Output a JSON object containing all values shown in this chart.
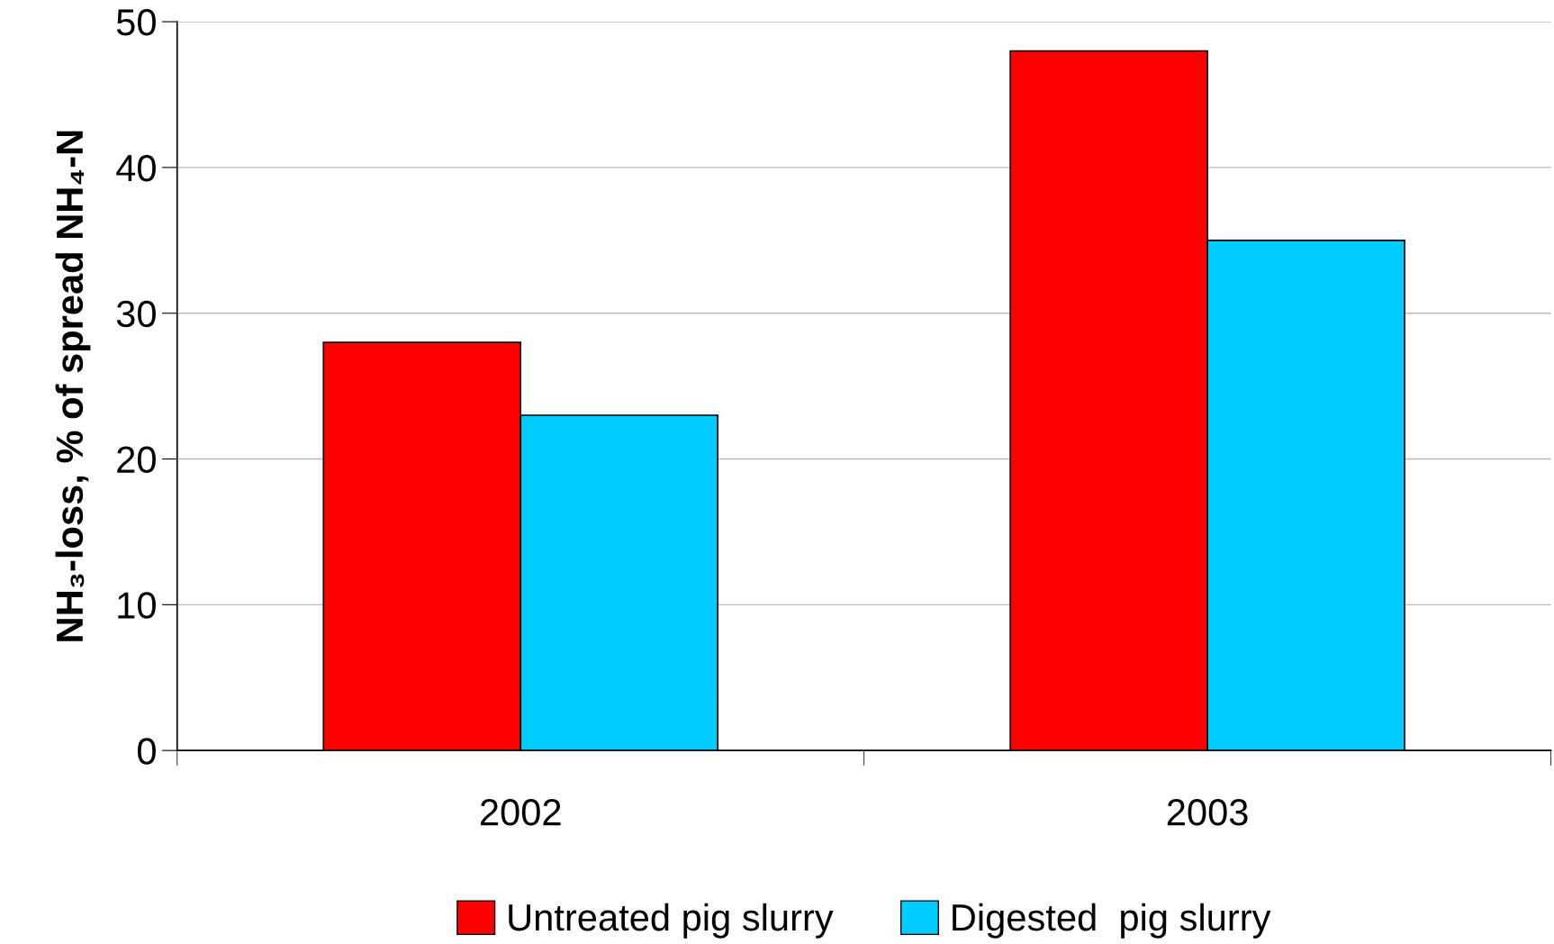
{
  "chart_data": {
    "type": "bar",
    "ylabel": "NH₃-loss, % of spread NH₄-N",
    "categories": [
      "2002",
      "2003"
    ],
    "series": [
      {
        "name": "Untreated pig slurry",
        "color": "#ff0000",
        "values": [
          28,
          48
        ]
      },
      {
        "name": "Digested  pig slurry",
        "color": "#00ccff",
        "values": [
          23,
          35
        ]
      }
    ],
    "ylim": [
      0,
      50
    ],
    "yticks": [
      0,
      10,
      20,
      30,
      40,
      50
    ],
    "grid": "y",
    "legend": "bottom"
  }
}
